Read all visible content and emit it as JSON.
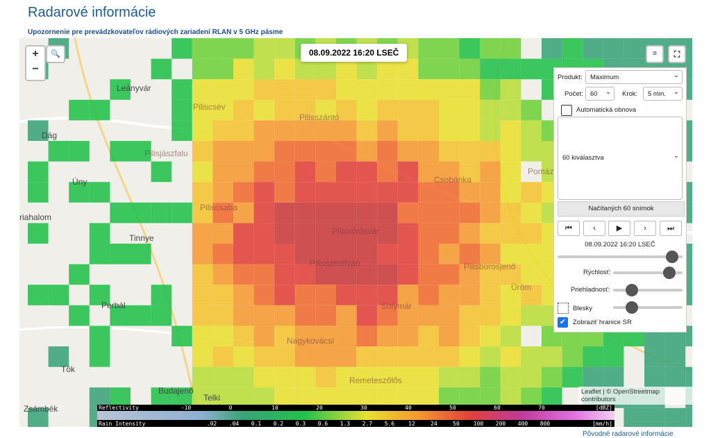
{
  "header": {
    "title": "Radarové informácie",
    "notice": "Upozornenie pre prevádzkovateľov rádiových zariadení RLAN v 5 GHz pásme"
  },
  "map": {
    "timestamp": "08.09.2022 16:20 LSEČ",
    "places": [
      "Leányvár",
      "Dág",
      "Úny",
      "riahalom",
      "Tinnye",
      "Perbál",
      "Tök",
      "Zsámbék",
      "Budajenő",
      "Telki",
      "Piliscsév",
      "Pilisjászfalu",
      "Pilisszántó",
      "Piliscsaba",
      "Pilisvörösvár",
      "Pilisszentiván",
      "Csobánka",
      "Pomáz",
      "Solymár",
      "Nagykovácsi",
      "Pilisborosjenő",
      "Üröm",
      "Remeteszőlős"
    ],
    "attribution": "Leaflet | © OpenStreetmap contributors"
  },
  "controls": {
    "product_label": "Produkt:",
    "product": "Maximum",
    "count_label": "Počet:",
    "count": "60",
    "step_label": "Krok:",
    "step": "5 min.",
    "auto_refresh": "Automatická obnova",
    "selection": "60 kiválasztva",
    "loaded": "Načítaných 60 snímok",
    "time": "08.09.2022 16:20 LSEČ",
    "speed": "Rýchlosť:",
    "opacity": "Priehladnosť:",
    "lightning": "Blesky",
    "borders": "Zobraziť hranice SR"
  },
  "legend": {
    "reflectivity": "Reflectivity",
    "reflectivity_ticks": [
      "-10",
      "0",
      "10",
      "20",
      "30",
      "40",
      "50",
      "60",
      "70"
    ],
    "reflectivity_unit": "[dBZ]",
    "rain": "Rain Intensity",
    "rain_ticks": [
      ".02",
      ".04",
      "0.1",
      "0.2",
      "0.3",
      "0.6",
      "1.3",
      "2.7",
      "5.6",
      "12",
      "24",
      "50",
      "100",
      "200",
      "400",
      "800"
    ],
    "rain_unit": "[mm/h]"
  },
  "footer": {
    "link": "Pôvodné radarové informácie"
  }
}
